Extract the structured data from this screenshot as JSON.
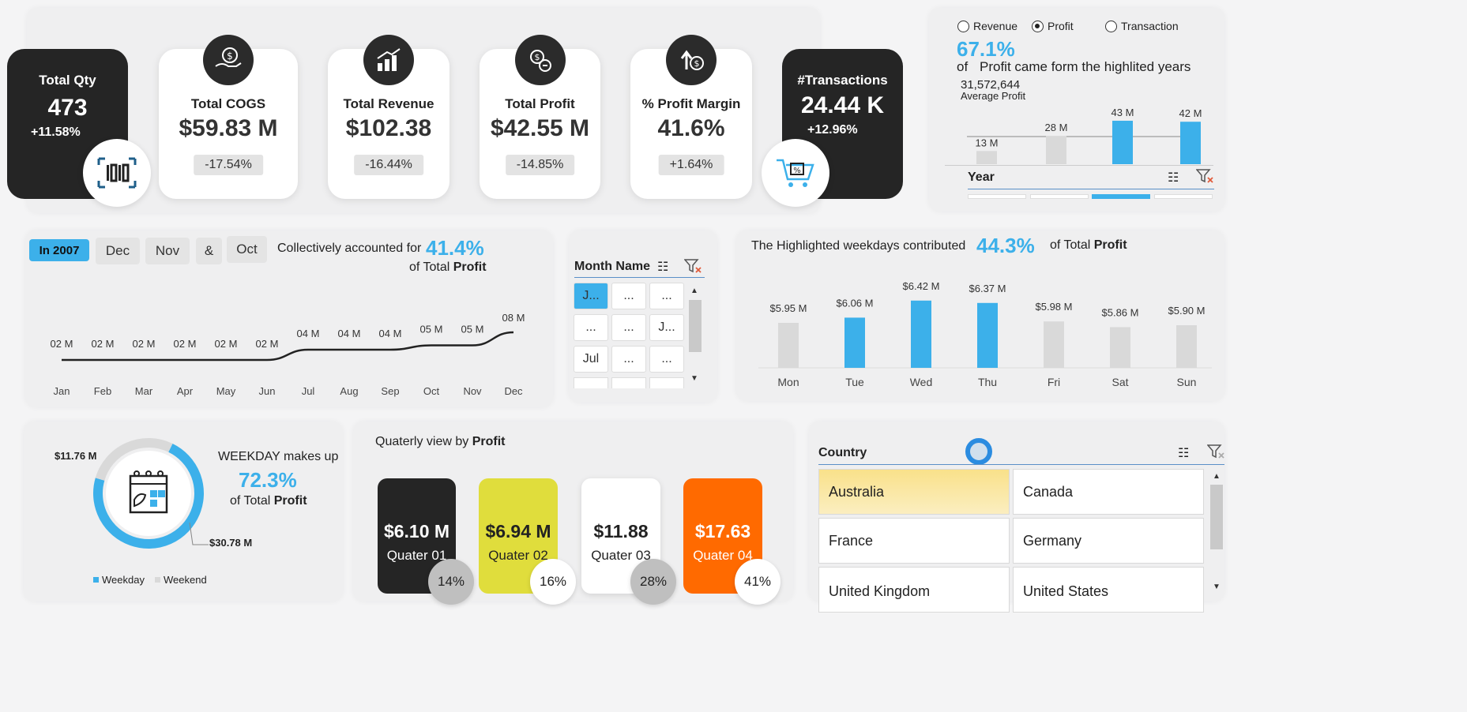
{
  "kpis": {
    "total_qty": {
      "title": "Total Qty",
      "value": "473",
      "change": "+11.58%"
    },
    "total_cogs": {
      "title": "Total COGS",
      "value": "$59.83 M",
      "change": "-17.54%"
    },
    "total_revenue": {
      "title": "Total Revenue",
      "value": "$102.38",
      "change": "-16.44%"
    },
    "total_profit": {
      "title": "Total Profit",
      "value": "$42.55 M",
      "change": "-14.85%"
    },
    "profit_margin": {
      "title": "% Profit Margin",
      "value": "41.6%",
      "change": "+1.64%"
    },
    "transactions": {
      "title": "#Transactions",
      "value": "24.44 K",
      "change": "+12.96%"
    }
  },
  "year_panel": {
    "radios": [
      {
        "label": "Revenue",
        "selected": false
      },
      {
        "label": "Profit",
        "selected": true
      },
      {
        "label": "Transaction",
        "selected": false
      }
    ],
    "pct": "67.1%",
    "of": "of",
    "desc": "Profit came form the highlited years",
    "avg_value": "31,572,644",
    "avg_label": "Average  Profit",
    "slicer_title": "Year"
  },
  "monthly_panel": {
    "tags": [
      "In 2007",
      "Dec",
      "Nov",
      "&",
      "Oct"
    ],
    "text": "Collectively accounted for",
    "pct": "41.4%",
    "of_total": "of Total",
    "profit_word": "Profit"
  },
  "month_slicer": {
    "title": "Month Name",
    "cells": [
      "J...",
      "...",
      "...",
      "...",
      "...",
      "J...",
      "Jul",
      "...",
      "..."
    ]
  },
  "weekday_panel": {
    "text": "The Highlighted weekdays contributed",
    "pct": "44.3%",
    "of_total": "of Total",
    "profit_word": "Profit"
  },
  "donut_panel": {
    "text": "WEEKDAY makes up",
    "pct": "72.3%",
    "of_total": "of Total",
    "profit_word": "Profit",
    "label_weekend": "$11.76 M",
    "label_weekday": "$30.78 M",
    "legend": [
      "Weekday",
      "Weekend"
    ]
  },
  "quarter_panel": {
    "title": "Quaterly view by",
    "profit_word": "Profit",
    "quarters": [
      {
        "value": "$6.10 M",
        "label": "Quater 01",
        "pct": "14%"
      },
      {
        "value": "$6.94 M",
        "label": "Quater 02",
        "pct": "16%"
      },
      {
        "value": "$11.88",
        "label": "Quater 03",
        "pct": "28%"
      },
      {
        "value": "$17.63",
        "label": "Quater 04",
        "pct": "41%"
      }
    ]
  },
  "country_panel": {
    "title": "Country",
    "countries": [
      "Australia",
      "Canada",
      "France",
      "Germany",
      "United Kingdom",
      "United States"
    ]
  },
  "colors": {
    "accent": "#3cb0ea",
    "gray_bar": "#d9d9d9",
    "dark": "#252525",
    "q2": "#e0dd3c",
    "q4": "#ff6a00"
  },
  "chart_data": [
    {
      "type": "bar",
      "title": "Year",
      "categories": [
        "",
        "",
        "",
        ""
      ],
      "values": [
        13,
        28,
        43,
        42
      ],
      "labels": [
        "13 M",
        "28 M",
        "43 M",
        "42 M"
      ],
      "highlighted": [
        false,
        false,
        true,
        true
      ],
      "unit": "M"
    },
    {
      "type": "line",
      "categories": [
        "Jan",
        "Feb",
        "Mar",
        "Apr",
        "May",
        "Jun",
        "Jul",
        "Aug",
        "Sep",
        "Oct",
        "Nov",
        "Dec"
      ],
      "values": [
        2,
        2,
        2,
        2,
        2,
        2,
        4,
        4,
        4,
        5,
        5,
        8
      ],
      "labels": [
        "02 M",
        "02 M",
        "02 M",
        "02 M",
        "02 M",
        "02 M",
        "04 M",
        "04 M",
        "04 M",
        "05 M",
        "05 M",
        "08 M"
      ]
    },
    {
      "type": "bar",
      "categories": [
        "Mon",
        "Tue",
        "Wed",
        "Thu",
        "Fri",
        "Sat",
        "Sun"
      ],
      "values": [
        5.95,
        6.06,
        6.42,
        6.37,
        5.98,
        5.86,
        5.9
      ],
      "labels": [
        "$5.95 M",
        "$6.06 M",
        "$6.42 M",
        "$6.37 M",
        "$5.98 M",
        "$5.86 M",
        "$5.90 M"
      ],
      "highlighted": [
        false,
        true,
        true,
        true,
        false,
        false,
        false
      ]
    },
    {
      "type": "pie",
      "categories": [
        "Weekday",
        "Weekend"
      ],
      "values": [
        30.78,
        11.76
      ],
      "labels": [
        "$30.78 M",
        "$11.76 M"
      ]
    }
  ]
}
